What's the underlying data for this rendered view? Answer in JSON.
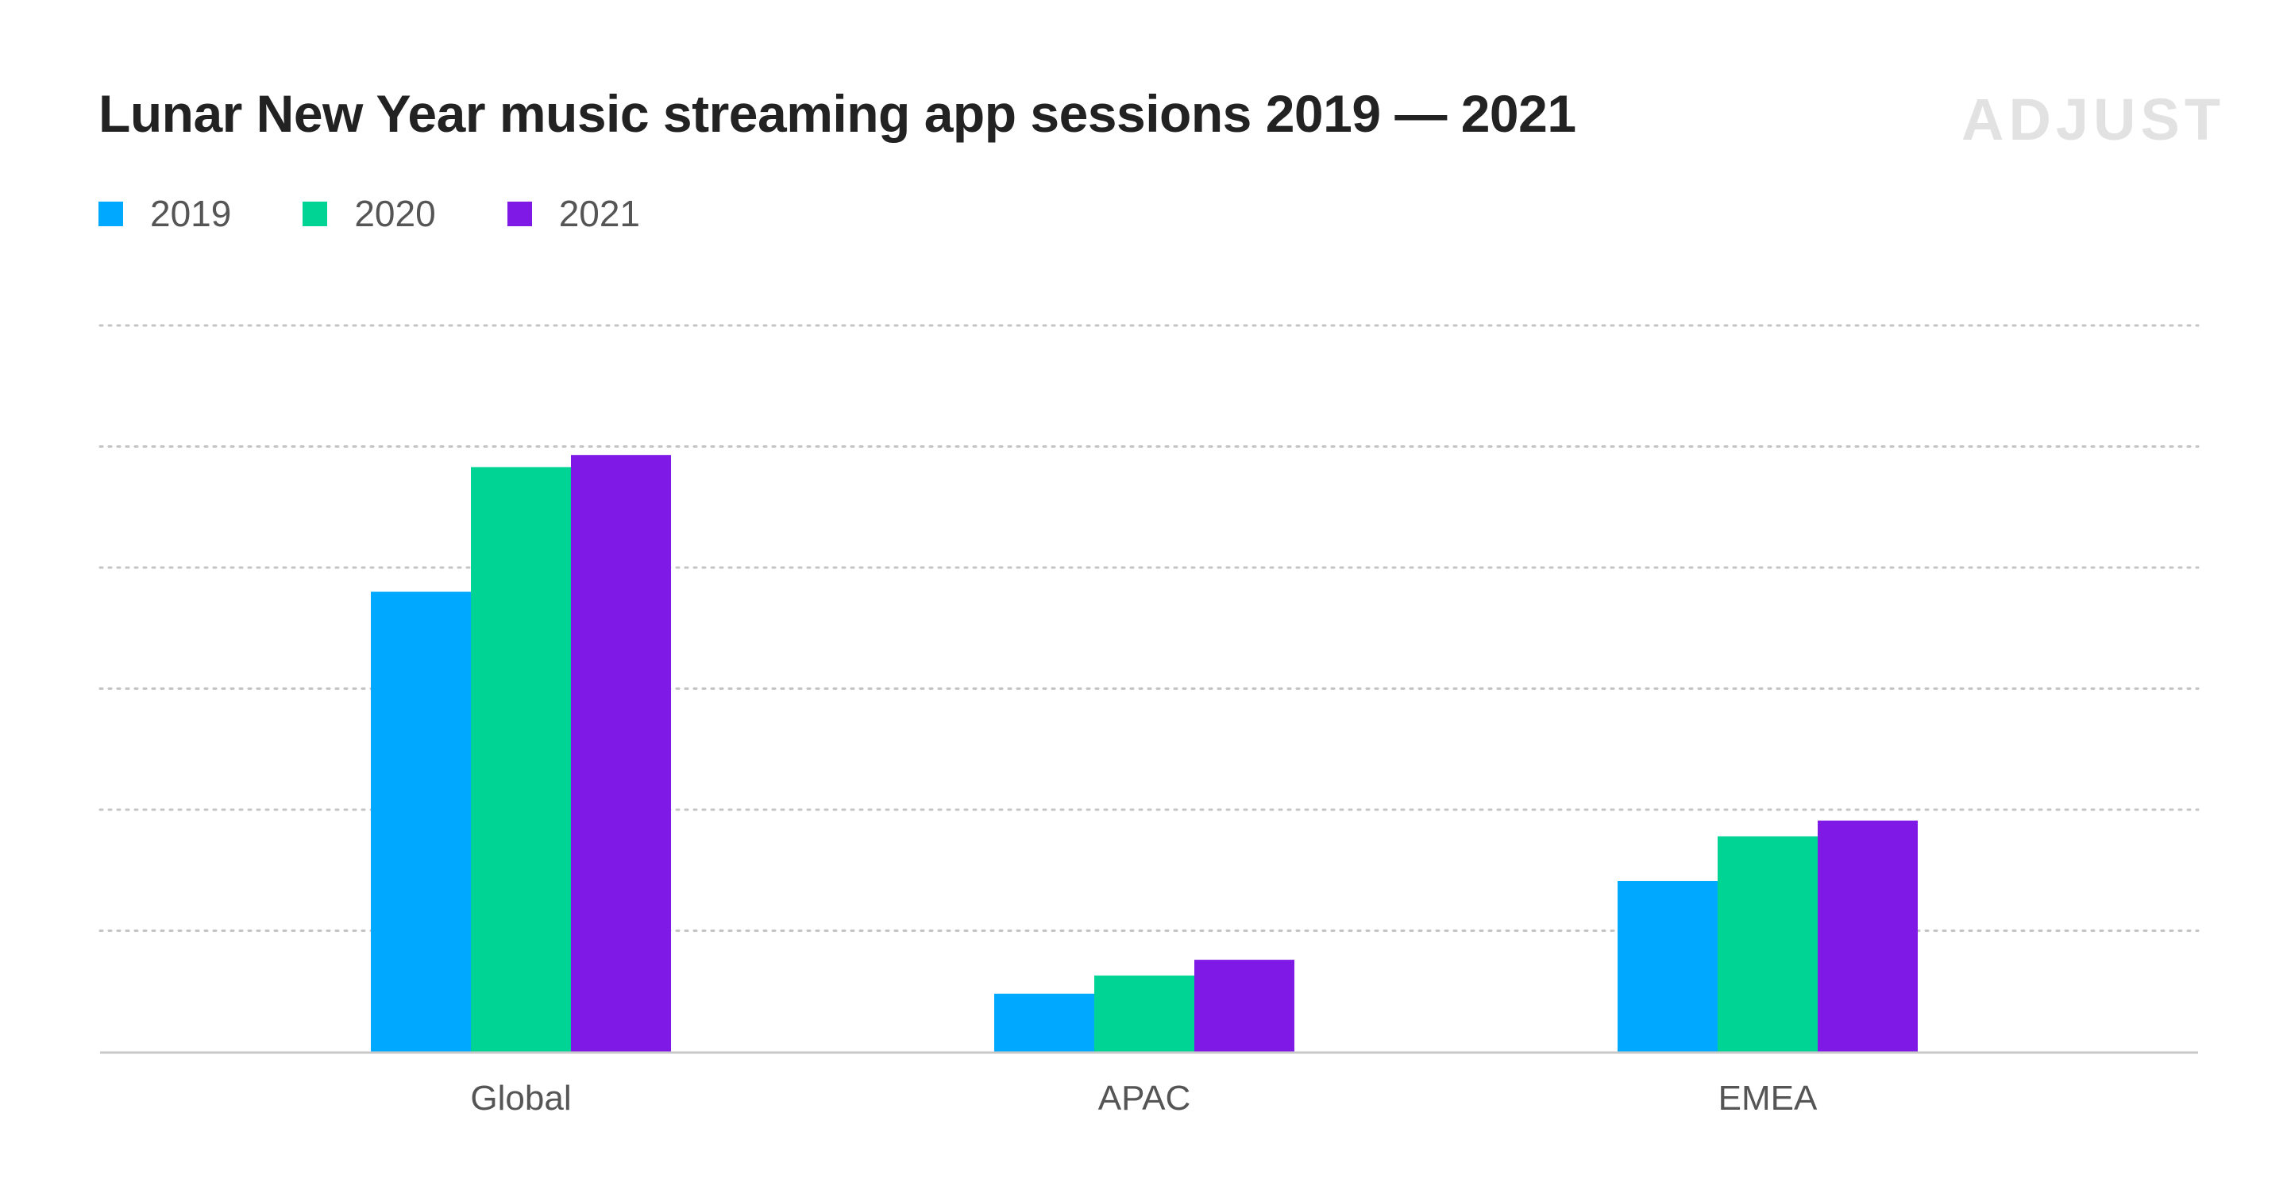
{
  "title": "Lunar New Year music streaming app sessions 2019 — 2021",
  "logo_text": "ADJUST",
  "chart_data": {
    "type": "bar",
    "title": "Lunar New Year music streaming app sessions 2019 — 2021",
    "categories": [
      "Global",
      "APAC",
      "EMEA"
    ],
    "series": [
      {
        "name": "2019",
        "color": "#00a8ff",
        "values": [
          3.8,
          0.48,
          1.41
        ]
      },
      {
        "name": "2020",
        "color": "#00d494",
        "values": [
          4.83,
          0.63,
          1.78
        ]
      },
      {
        "name": "2021",
        "color": "#7f19e6",
        "values": [
          4.93,
          0.76,
          1.91
        ]
      }
    ],
    "ylim": [
      0,
      6
    ],
    "y_ticks_labeled": false,
    "grid": true,
    "legend_position": "top-left",
    "xlabel": "",
    "ylabel": ""
  }
}
